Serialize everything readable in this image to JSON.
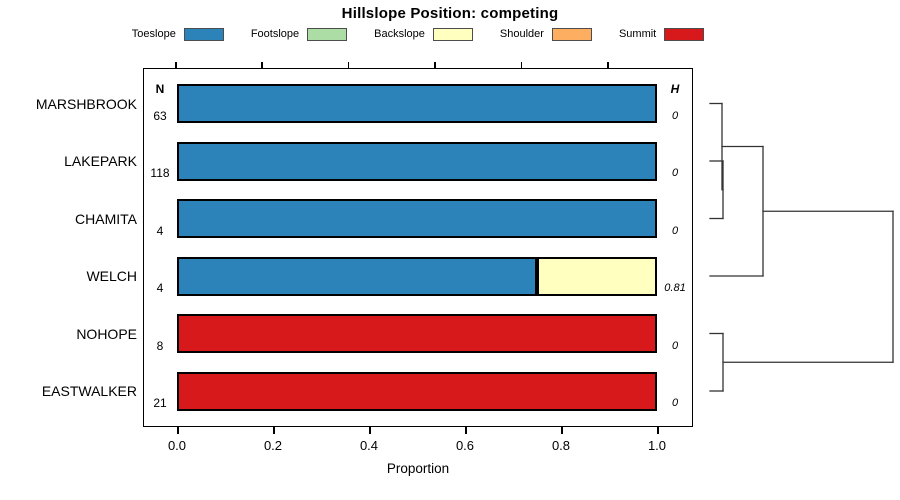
{
  "title": "Hillslope Position: competing",
  "legend": {
    "items": [
      {
        "label": "Toeslope",
        "color": "#2B83BA"
      },
      {
        "label": "Footslope",
        "color": "#ABDDA4"
      },
      {
        "label": "Backslope",
        "color": "#FFFFBF"
      },
      {
        "label": "Shoulder",
        "color": "#FDAE61"
      },
      {
        "label": "Summit",
        "color": "#D7191C"
      }
    ]
  },
  "chart_data": {
    "type": "bar",
    "orientation": "horizontal-stacked",
    "title": "Hillslope Position: competing",
    "xlabel": "Proportion",
    "xlim": [
      0,
      1
    ],
    "x_ticks": [
      "0.0",
      "0.2",
      "0.4",
      "0.6",
      "0.8",
      "1.0"
    ],
    "x_tick_values": [
      0,
      0.2,
      0.4,
      0.6,
      0.8,
      1.0
    ],
    "grid": false,
    "legend_position": "top",
    "categories": [
      "MARSHBROOK",
      "LAKEPARK",
      "CHAMITA",
      "WELCH",
      "NOHOPE",
      "EASTWALKER"
    ],
    "n_column": {
      "header": "N",
      "values": [
        "63",
        "118",
        "4",
        "4",
        "8",
        "21"
      ]
    },
    "h_column": {
      "header": "H",
      "values": [
        "0",
        "0",
        "0",
        "0.81",
        "0",
        "0"
      ]
    },
    "series": [
      {
        "name": "Toeslope",
        "color": "#2B83BA",
        "values": [
          1,
          1,
          1,
          0.75,
          0,
          0
        ]
      },
      {
        "name": "Footslope",
        "color": "#ABDDA4",
        "values": [
          0,
          0,
          0,
          0,
          0,
          0
        ]
      },
      {
        "name": "Backslope",
        "color": "#FFFFBF",
        "values": [
          0,
          0,
          0,
          0.25,
          0,
          0
        ]
      },
      {
        "name": "Shoulder",
        "color": "#FDAE61",
        "values": [
          0,
          0,
          0,
          0,
          0,
          0
        ]
      },
      {
        "name": "Summit",
        "color": "#D7191C",
        "values": [
          0,
          0,
          0,
          0,
          1,
          1
        ]
      }
    ],
    "dendrogram": {
      "position": "right",
      "merges": [
        {
          "members": [
            "LAKEPARK",
            "CHAMITA"
          ],
          "relative_height": 0.07
        },
        {
          "members": [
            "MARSHBROOK",
            "LAKEPARK+CHAMITA"
          ],
          "relative_height": 0.07
        },
        {
          "members": [
            "MARSHBROOK+LAKEPARK+CHAMITA",
            "WELCH"
          ],
          "relative_height": 0.29
        },
        {
          "members": [
            "NOHOPE",
            "EASTWALKER"
          ],
          "relative_height": 0.07
        },
        {
          "members": [
            "MARSHBROOK+LAKEPARK+CHAMITA+WELCH",
            "NOHOPE+EASTWALKER"
          ],
          "relative_height": 1.0
        }
      ]
    }
  }
}
